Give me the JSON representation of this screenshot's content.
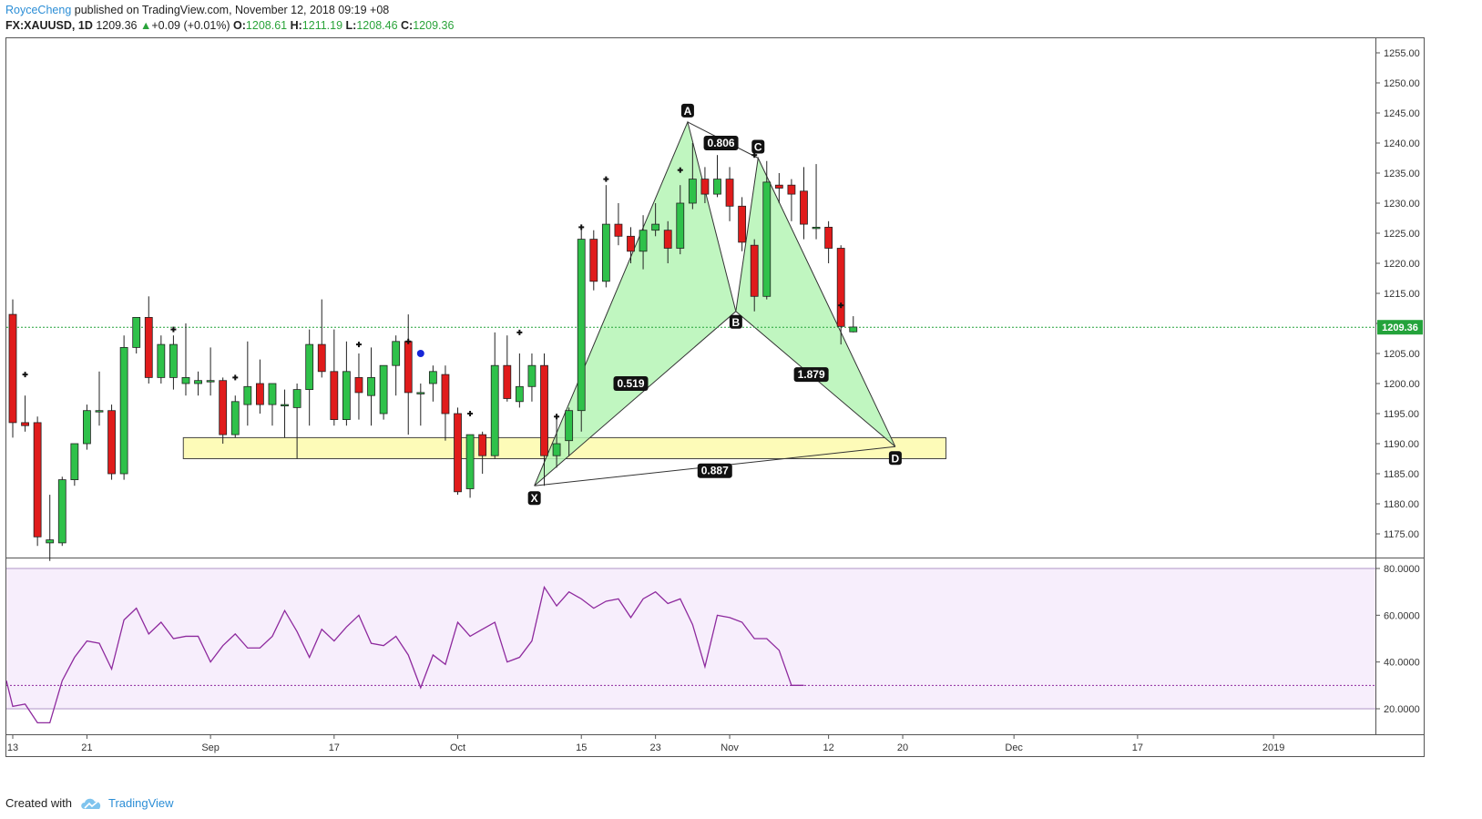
{
  "header": {
    "author": "RoyceCheng",
    "published": "published on TradingView.com, November 12, 2018 09:19 +08",
    "symbol": "FX:XAUUSD, 1D",
    "last": "1209.36",
    "change_arrow": "▲",
    "change": "+0.09 (+0.01%)",
    "o_label": "O:",
    "o_val": "1208.61",
    "h_label": "H:",
    "h_val": "1211.19",
    "l_label": "L:",
    "l_val": "1208.46",
    "c_label": "C:",
    "c_val": "1209.36"
  },
  "footer": {
    "created_with": "Created with",
    "brand": "TradingView"
  },
  "colors": {
    "up": "#2fc14a",
    "down": "#e01b1b",
    "pattern_fill": "#b5f5b5",
    "zone_fill": "#fdfbb8",
    "rsi_line": "#8e2a9e",
    "rsi_band": "#f7eefc",
    "price_line": "#24a33b"
  },
  "chart_data": {
    "type": "candlestick",
    "price_axis": {
      "min": 1170,
      "max": 1258,
      "ticks": [
        "1255.00",
        "1250.00",
        "1245.00",
        "1240.00",
        "1235.00",
        "1230.00",
        "1225.00",
        "1220.00",
        "1215.00",
        "1210.00",
        "1205.00",
        "1200.00",
        "1195.00",
        "1190.00",
        "1185.00",
        "1180.00",
        "1175.00"
      ]
    },
    "last_price_label": "1209.36",
    "last_price": 1209.36,
    "x_ticks": [
      {
        "label": "13",
        "i": 0
      },
      {
        "label": "21",
        "i": 6
      },
      {
        "label": "Sep",
        "i": 16
      },
      {
        "label": "17",
        "i": 26
      },
      {
        "label": "Oct",
        "i": 36
      },
      {
        "label": "15",
        "i": 46
      },
      {
        "label": "23",
        "i": 52
      },
      {
        "label": "Nov",
        "i": 58
      },
      {
        "label": "12",
        "i": 66
      },
      {
        "label": "20",
        "i": 72
      },
      {
        "label": "Dec",
        "i": 81
      },
      {
        "label": "17",
        "i": 91
      },
      {
        "label": "2019",
        "i": 102
      }
    ],
    "candles": [
      {
        "o": 1211.5,
        "h": 1214,
        "l": 1191,
        "c": 1193.5
      },
      {
        "o": 1193.5,
        "h": 1198,
        "l": 1192,
        "c": 1193
      },
      {
        "o": 1193.5,
        "h": 1194.5,
        "l": 1173,
        "c": 1174.5
      },
      {
        "o": 1173.5,
        "h": 1181.5,
        "l": 1170.5,
        "c": 1174
      },
      {
        "o": 1173.5,
        "h": 1184.5,
        "l": 1173,
        "c": 1184
      },
      {
        "o": 1184,
        "h": 1190,
        "l": 1183,
        "c": 1190
      },
      {
        "o": 1190,
        "h": 1196.5,
        "l": 1189,
        "c": 1195.5
      },
      {
        "o": 1195.5,
        "h": 1202,
        "l": 1193,
        "c": 1195.5
      },
      {
        "o": 1195.5,
        "h": 1196.5,
        "l": 1184,
        "c": 1185
      },
      {
        "o": 1185,
        "h": 1208,
        "l": 1184,
        "c": 1206
      },
      {
        "o": 1206,
        "h": 1211,
        "l": 1205,
        "c": 1211
      },
      {
        "o": 1211,
        "h": 1214.5,
        "l": 1200,
        "c": 1201
      },
      {
        "o": 1201,
        "h": 1208,
        "l": 1200,
        "c": 1206.5
      },
      {
        "o": 1201,
        "h": 1208,
        "l": 1199,
        "c": 1206.5
      },
      {
        "o": 1200,
        "h": 1210,
        "l": 1198,
        "c": 1201
      },
      {
        "o": 1200,
        "h": 1202,
        "l": 1198,
        "c": 1200.5
      },
      {
        "o": 1200.5,
        "h": 1206,
        "l": 1198,
        "c": 1200.5
      },
      {
        "o": 1200.5,
        "h": 1201,
        "l": 1190,
        "c": 1191.5
      },
      {
        "o": 1191.5,
        "h": 1198,
        "l": 1191,
        "c": 1197
      },
      {
        "o": 1196.5,
        "h": 1207,
        "l": 1193,
        "c": 1199.5
      },
      {
        "o": 1200,
        "h": 1204,
        "l": 1195,
        "c": 1196.5
      },
      {
        "o": 1196.5,
        "h": 1200,
        "l": 1193,
        "c": 1200
      },
      {
        "o": 1196.5,
        "h": 1199,
        "l": 1191,
        "c": 1196.5
      },
      {
        "o": 1196,
        "h": 1200,
        "l": 1187.5,
        "c": 1199
      },
      {
        "o": 1199,
        "h": 1209,
        "l": 1193,
        "c": 1206.5
      },
      {
        "o": 1206.5,
        "h": 1214,
        "l": 1201,
        "c": 1202
      },
      {
        "o": 1202,
        "h": 1209,
        "l": 1193,
        "c": 1194
      },
      {
        "o": 1194,
        "h": 1207,
        "l": 1193,
        "c": 1202
      },
      {
        "o": 1201,
        "h": 1205,
        "l": 1194,
        "c": 1198.5
      },
      {
        "o": 1198,
        "h": 1206,
        "l": 1193,
        "c": 1201
      },
      {
        "o": 1195,
        "h": 1203,
        "l": 1194,
        "c": 1203
      },
      {
        "o": 1203,
        "h": 1208,
        "l": 1198,
        "c": 1207
      },
      {
        "o": 1207,
        "h": 1211.5,
        "l": 1191.5,
        "c": 1198.5
      },
      {
        "o": 1198.5,
        "h": 1200,
        "l": 1193,
        "c": 1198.5
      },
      {
        "o": 1200,
        "h": 1203,
        "l": 1197,
        "c": 1202
      },
      {
        "o": 1201.5,
        "h": 1203,
        "l": 1190.5,
        "c": 1195
      },
      {
        "o": 1195,
        "h": 1196,
        "l": 1181.5,
        "c": 1182
      },
      {
        "o": 1182.5,
        "h": 1191.5,
        "l": 1181,
        "c": 1191.5
      },
      {
        "o": 1191.5,
        "h": 1192,
        "l": 1185,
        "c": 1188
      },
      {
        "o": 1188,
        "h": 1208.5,
        "l": 1187.5,
        "c": 1203
      },
      {
        "o": 1203,
        "h": 1208,
        "l": 1197,
        "c": 1197.5
      },
      {
        "o": 1197,
        "h": 1205,
        "l": 1196,
        "c": 1199.5
      },
      {
        "o": 1199.5,
        "h": 1205,
        "l": 1197,
        "c": 1203
      },
      {
        "o": 1203,
        "h": 1205,
        "l": 1183,
        "c": 1188
      },
      {
        "o": 1188,
        "h": 1195,
        "l": 1186,
        "c": 1190
      },
      {
        "o": 1190.5,
        "h": 1196,
        "l": 1188,
        "c": 1195.5
      },
      {
        "o": 1195.5,
        "h": 1226,
        "l": 1192,
        "c": 1224
      },
      {
        "o": 1224,
        "h": 1225.5,
        "l": 1215.5,
        "c": 1217
      },
      {
        "o": 1217,
        "h": 1233,
        "l": 1216,
        "c": 1226.5
      },
      {
        "o": 1226.5,
        "h": 1230,
        "l": 1223,
        "c": 1224.5
      },
      {
        "o": 1224.5,
        "h": 1226,
        "l": 1220,
        "c": 1222
      },
      {
        "o": 1222,
        "h": 1228,
        "l": 1219,
        "c": 1225.5
      },
      {
        "o": 1225.5,
        "h": 1230,
        "l": 1224.5,
        "c": 1226.5
      },
      {
        "o": 1225.5,
        "h": 1227,
        "l": 1220,
        "c": 1222.5
      },
      {
        "o": 1222.5,
        "h": 1233,
        "l": 1221.5,
        "c": 1230
      },
      {
        "o": 1230,
        "h": 1240,
        "l": 1229,
        "c": 1234
      },
      {
        "o": 1234,
        "h": 1236,
        "l": 1230,
        "c": 1231.5
      },
      {
        "o": 1231.5,
        "h": 1238,
        "l": 1231,
        "c": 1234
      },
      {
        "o": 1234,
        "h": 1236,
        "l": 1227,
        "c": 1229.5
      },
      {
        "o": 1229.5,
        "h": 1231,
        "l": 1222,
        "c": 1223.5
      },
      {
        "o": 1223,
        "h": 1224,
        "l": 1212,
        "c": 1214.5
      },
      {
        "o": 1214.5,
        "h": 1237,
        "l": 1214,
        "c": 1233.5
      },
      {
        "o": 1233,
        "h": 1235,
        "l": 1230,
        "c": 1232.5
      },
      {
        "o": 1233,
        "h": 1234,
        "l": 1227,
        "c": 1231.5
      },
      {
        "o": 1232,
        "h": 1236,
        "l": 1224,
        "c": 1226.5
      },
      {
        "o": 1226,
        "h": 1236.5,
        "l": 1224,
        "c": 1226
      },
      {
        "o": 1226,
        "h": 1227,
        "l": 1220,
        "c": 1222.5
      },
      {
        "o": 1222.5,
        "h": 1223,
        "l": 1206.5,
        "c": 1209.5
      },
      {
        "o": 1208.6,
        "h": 1211.2,
        "l": 1208.5,
        "c": 1209.4
      }
    ],
    "markers": [
      {
        "i": 1,
        "p": 1201.5
      },
      {
        "i": 13,
        "p": 1209
      },
      {
        "i": 18,
        "p": 1201
      },
      {
        "i": 28,
        "p": 1206.5
      },
      {
        "i": 32,
        "p": 1207
      },
      {
        "i": 37,
        "p": 1195
      },
      {
        "i": 41,
        "p": 1208.5
      },
      {
        "i": 44,
        "p": 1194.5
      },
      {
        "i": 46,
        "p": 1226
      },
      {
        "i": 48,
        "p": 1234
      },
      {
        "i": 54,
        "p": 1235.5
      },
      {
        "i": 60,
        "p": 1238
      },
      {
        "i": 67,
        "p": 1213
      }
    ],
    "dot": {
      "i": 33,
      "p": 1205
    },
    "zone": {
      "i_start": 13.8,
      "i_end": 75.5,
      "p_top": 1191,
      "p_bottom": 1187.5
    },
    "harmonic": {
      "points": [
        {
          "label": "X",
          "i": 42.2,
          "p": 1183
        },
        {
          "label": "A",
          "i": 54.6,
          "p": 1243.5
        },
        {
          "label": "B",
          "i": 58.5,
          "p": 1212
        },
        {
          "label": "C",
          "i": 60.3,
          "p": 1237.5
        },
        {
          "label": "D",
          "i": 71.4,
          "p": 1189.5
        }
      ],
      "ratios": [
        {
          "label": "0.519",
          "i": 50,
          "p": 1200
        },
        {
          "label": "0.806",
          "i": 57.3,
          "p": 1240
        },
        {
          "label": "1.879",
          "i": 64.6,
          "p": 1201.5
        },
        {
          "label": "0.887",
          "i": 56.8,
          "p": 1185.5
        }
      ]
    },
    "rsi": {
      "ticks": [
        "80.0000",
        "60.0000",
        "40.0000",
        "20.0000"
      ],
      "min": 12,
      "max": 82,
      "upper": 80,
      "lower": 20,
      "mid": 30,
      "values": [
        32,
        21,
        22,
        14,
        14,
        32,
        42,
        49,
        48,
        37,
        58,
        63,
        52,
        57,
        50,
        51,
        51,
        40,
        47,
        52,
        46,
        46,
        51,
        62,
        53,
        42,
        54,
        49,
        55,
        60,
        48,
        47,
        51,
        43,
        29,
        43,
        39,
        57,
        51,
        54,
        57,
        40,
        42,
        49,
        72,
        64,
        70,
        67,
        63,
        66,
        67,
        59,
        67,
        70,
        65,
        67,
        56,
        38,
        60,
        59,
        57,
        50,
        50,
        45,
        30,
        30
      ]
    }
  }
}
